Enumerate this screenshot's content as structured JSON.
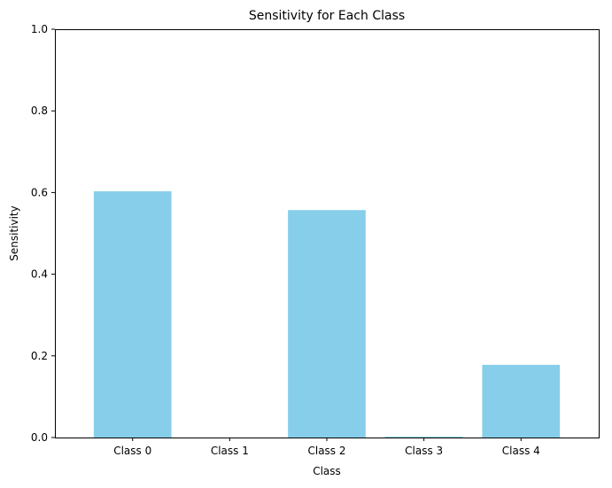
{
  "chart_data": {
    "type": "bar",
    "title": "Sensitivity for Each Class",
    "xlabel": "Class",
    "ylabel": "Sensitivity",
    "categories": [
      "Class 0",
      "Class 1",
      "Class 2",
      "Class 3",
      "Class 4"
    ],
    "values": [
      0.603,
      0.0,
      0.557,
      0.002,
      0.178
    ],
    "ylim": [
      0,
      1.0
    ],
    "yticks": [
      "0.0",
      "0.2",
      "0.4",
      "0.6",
      "0.8",
      "1.0"
    ],
    "bar_color": "#87CEEB",
    "grid": false,
    "legend": "none"
  }
}
